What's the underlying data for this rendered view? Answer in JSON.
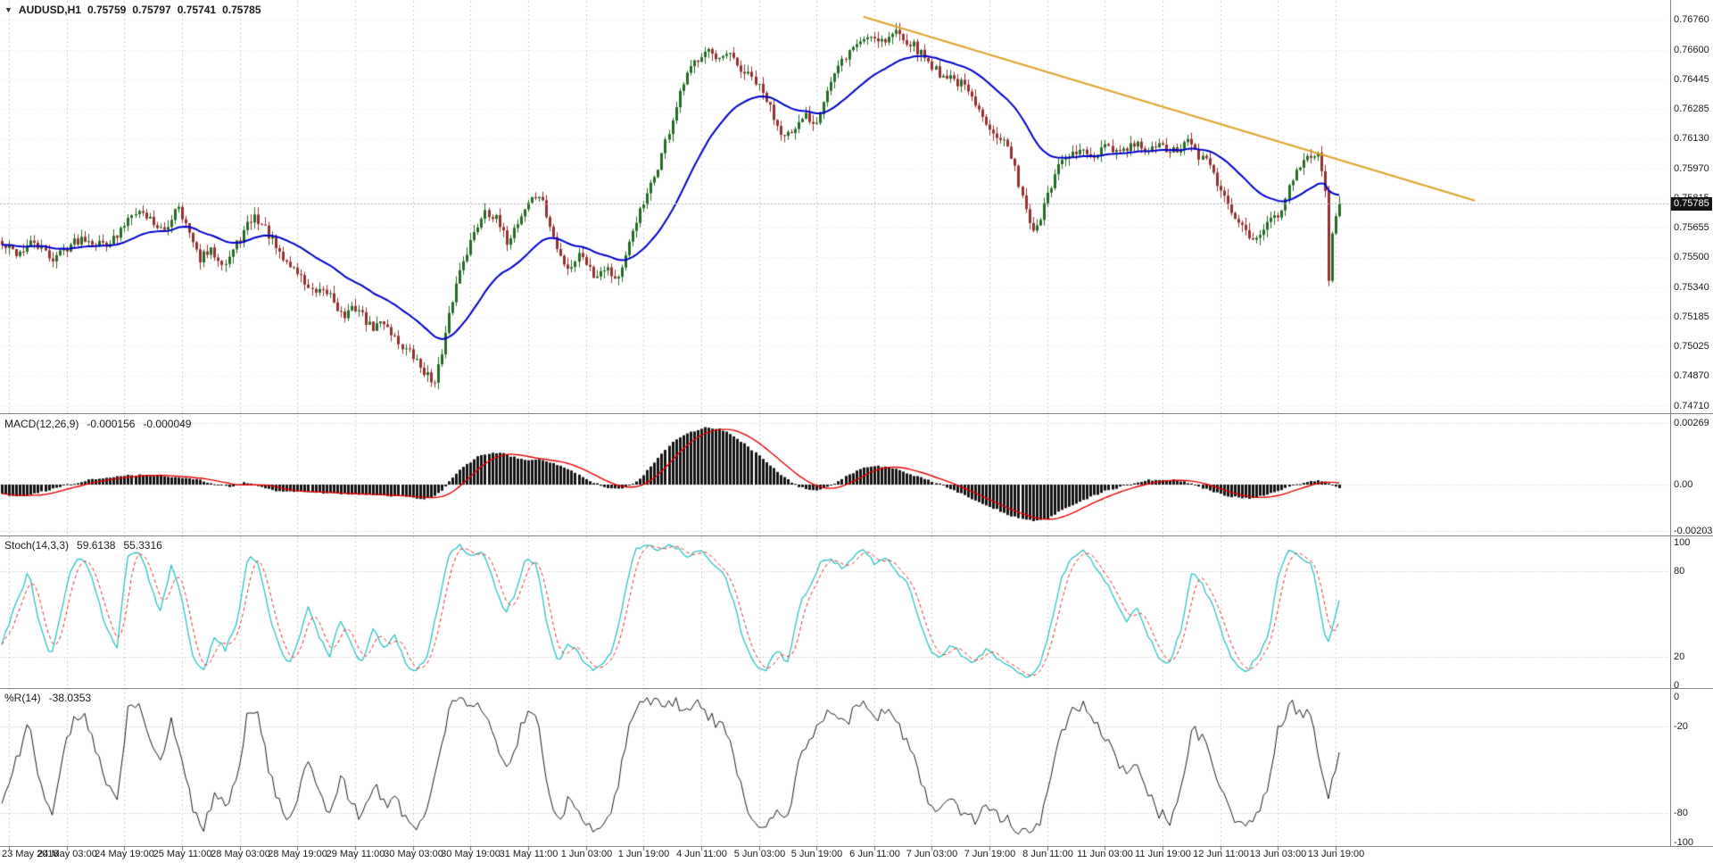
{
  "header": {
    "symbol": "AUDUSD,H1",
    "open": "0.75759",
    "high": "0.75797",
    "low": "0.75741",
    "close": "0.75785",
    "dropdown_icon": "▼"
  },
  "main_panel": {
    "price_labels": [
      "0.76760",
      "0.76600",
      "0.76445",
      "0.76285",
      "0.76130",
      "0.75970",
      "0.75815",
      "0.75655",
      "0.75500",
      "0.75340",
      "0.75185",
      "0.75025",
      "0.74870",
      "0.74710"
    ],
    "current_price": "0.75785",
    "up_color": "#256b25",
    "down_color": "#953131",
    "ma_color": "#0000cc",
    "trendline_color": "#dfa32b",
    "badge_bg": "#151515"
  },
  "macd_panel": {
    "label": "MACD(12,26,9)",
    "value1": "-0.000156",
    "value2": "-0.000049",
    "axis_labels": [
      "0.00269",
      "0.00",
      "-0.00203"
    ],
    "histogram_color": "#141414",
    "signal_color": "#e60000"
  },
  "stoch_panel": {
    "label": "Stoch(14,3,3)",
    "value1": "59.6138",
    "value2": "55.3316",
    "axis_labels": [
      "100",
      "80",
      "20",
      "0"
    ],
    "levels": [
      80,
      20
    ],
    "k_color": "#2ec4c4",
    "d_color": "#e03030"
  },
  "wpr_panel": {
    "label": "%R(14)",
    "value1": "-38.0353",
    "axis_labels": [
      "0",
      "-20",
      "-80",
      "-100"
    ],
    "levels": [
      -20,
      -80
    ],
    "line_color": "#1a1a1a"
  },
  "time_axis": {
    "labels": [
      "23 May 2018",
      "24 May 03:00",
      "24 May 19:00",
      "25 May 11:00",
      "28 May 03:00",
      "28 May 19:00",
      "29 May 11:00",
      "30 May 03:00",
      "30 May 19:00",
      "31 May 11:00",
      "1 Jun 03:00",
      "1 Jun 19:00",
      "4 Jun 11:00",
      "5 Jun 03:00",
      "5 Jun 19:00",
      "6 Jun 11:00",
      "7 Jun 03:00",
      "7 Jun 19:00",
      "8 Jun 11:00",
      "11 Jun 03:00",
      "11 Jun 19:00",
      "12 Jun 11:00",
      "13 Jun 03:00",
      "13 Jun 19:00"
    ]
  },
  "chart_data": {
    "type": "candlestick",
    "title": "AUDUSD,H1",
    "symbol": "AUDUSD",
    "timeframe": "H1",
    "bars": 372,
    "grid_every_bars": 16,
    "first_grid_bar": 2,
    "price_range": {
      "top_label_price": 0.7676,
      "bottom_label_price": 0.7471
    },
    "close_path": [
      [
        0,
        0.7556
      ],
      [
        0.012,
        0.7552
      ],
      [
        0.024,
        0.7558
      ],
      [
        0.037,
        0.7549
      ],
      [
        0.049,
        0.7556
      ],
      [
        0.061,
        0.7561
      ],
      [
        0.073,
        0.7557
      ],
      [
        0.086,
        0.756
      ],
      [
        0.098,
        0.7576
      ],
      [
        0.11,
        0.7571
      ],
      [
        0.122,
        0.7562
      ],
      [
        0.131,
        0.758
      ],
      [
        0.137,
        0.7568
      ],
      [
        0.147,
        0.7549
      ],
      [
        0.157,
        0.7553
      ],
      [
        0.167,
        0.7547
      ],
      [
        0.178,
        0.756
      ],
      [
        0.188,
        0.7572
      ],
      [
        0.198,
        0.7564
      ],
      [
        0.208,
        0.755
      ],
      [
        0.22,
        0.7543
      ],
      [
        0.233,
        0.753
      ],
      [
        0.245,
        0.7531
      ],
      [
        0.255,
        0.7518
      ],
      [
        0.265,
        0.7524
      ],
      [
        0.276,
        0.7512
      ],
      [
        0.286,
        0.7516
      ],
      [
        0.296,
        0.7505
      ],
      [
        0.306,
        0.7498
      ],
      [
        0.317,
        0.7488
      ],
      [
        0.322,
        0.7483
      ],
      [
        0.329,
        0.7498
      ],
      [
        0.336,
        0.7525
      ],
      [
        0.344,
        0.7548
      ],
      [
        0.353,
        0.7562
      ],
      [
        0.361,
        0.7576
      ],
      [
        0.369,
        0.757
      ],
      [
        0.377,
        0.7558
      ],
      [
        0.385,
        0.7568
      ],
      [
        0.394,
        0.758
      ],
      [
        0.402,
        0.7583
      ],
      [
        0.408,
        0.757
      ],
      [
        0.416,
        0.7552
      ],
      [
        0.424,
        0.7544
      ],
      [
        0.433,
        0.7553
      ],
      [
        0.442,
        0.754
      ],
      [
        0.451,
        0.7546
      ],
      [
        0.459,
        0.7538
      ],
      [
        0.465,
        0.7545
      ],
      [
        0.473,
        0.7568
      ],
      [
        0.482,
        0.7581
      ],
      [
        0.49,
        0.7597
      ],
      [
        0.5,
        0.762
      ],
      [
        0.51,
        0.7643
      ],
      [
        0.519,
        0.7655
      ],
      [
        0.527,
        0.7662
      ],
      [
        0.535,
        0.7652
      ],
      [
        0.543,
        0.7658
      ],
      [
        0.551,
        0.765
      ],
      [
        0.562,
        0.7644
      ],
      [
        0.571,
        0.7634
      ],
      [
        0.581,
        0.7618
      ],
      [
        0.592,
        0.7614
      ],
      [
        0.6,
        0.7626
      ],
      [
        0.608,
        0.7621
      ],
      [
        0.618,
        0.764
      ],
      [
        0.629,
        0.7655
      ],
      [
        0.638,
        0.7663
      ],
      [
        0.649,
        0.7668
      ],
      [
        0.66,
        0.7665
      ],
      [
        0.669,
        0.767
      ],
      [
        0.679,
        0.7664
      ],
      [
        0.69,
        0.7656
      ],
      [
        0.7,
        0.7648
      ],
      [
        0.71,
        0.7645
      ],
      [
        0.72,
        0.764
      ],
      [
        0.731,
        0.7626
      ],
      [
        0.741,
        0.7618
      ],
      [
        0.751,
        0.761
      ],
      [
        0.761,
        0.7588
      ],
      [
        0.771,
        0.7562
      ],
      [
        0.78,
        0.7578
      ],
      [
        0.788,
        0.7596
      ],
      [
        0.796,
        0.7602
      ],
      [
        0.806,
        0.7607
      ],
      [
        0.816,
        0.7602
      ],
      [
        0.826,
        0.7608
      ],
      [
        0.837,
        0.7605
      ],
      [
        0.847,
        0.761
      ],
      [
        0.857,
        0.7606
      ],
      [
        0.867,
        0.7609
      ],
      [
        0.878,
        0.7605
      ],
      [
        0.886,
        0.7612
      ],
      [
        0.894,
        0.7604
      ],
      [
        0.904,
        0.7598
      ],
      [
        0.914,
        0.758
      ],
      [
        0.924,
        0.7568
      ],
      [
        0.935,
        0.7561
      ],
      [
        0.945,
        0.7566
      ],
      [
        0.955,
        0.7574
      ],
      [
        0.965,
        0.7592
      ],
      [
        0.975,
        0.7601
      ],
      [
        0.983,
        0.7607
      ],
      [
        0.989,
        0.759
      ],
      [
        0.9915,
        0.7535
      ],
      [
        0.995,
        0.7566
      ],
      [
        1,
        0.75785
      ]
    ],
    "ma": {
      "type": "ema",
      "period": 30,
      "color": "#0000cc"
    },
    "trendline": {
      "x1_frac": 0.504,
      "price1": 0.76775,
      "x2_frac": 0.861,
      "price2": 0.758
    },
    "macd": {
      "params": "12,26,9",
      "last": -0.000156,
      "signal_last": -4.9e-05,
      "axis_range": [
        -0.00203,
        0.00269
      ],
      "signal_sma": 10,
      "path": [
        [
          0,
          -0.0004
        ],
        [
          0.01,
          -0.00055
        ],
        [
          0.025,
          -0.0004
        ],
        [
          0.045,
          -5e-05
        ],
        [
          0.065,
          0.0002
        ],
        [
          0.085,
          0.00035
        ],
        [
          0.1,
          0.00042
        ],
        [
          0.115,
          0.0004
        ],
        [
          0.13,
          0.00032
        ],
        [
          0.145,
          0.00025
        ],
        [
          0.158,
          5e-05
        ],
        [
          0.17,
          -0.00012
        ],
        [
          0.182,
          0.0001
        ],
        [
          0.192,
          -8e-05
        ],
        [
          0.205,
          -0.00028
        ],
        [
          0.225,
          -0.0003
        ],
        [
          0.245,
          -0.00038
        ],
        [
          0.265,
          -0.00042
        ],
        [
          0.285,
          -0.00048
        ],
        [
          0.302,
          -0.00055
        ],
        [
          0.315,
          -0.00062
        ],
        [
          0.322,
          -0.00055
        ],
        [
          0.33,
          -0.0002
        ],
        [
          0.338,
          0.0004
        ],
        [
          0.348,
          0.0009
        ],
        [
          0.358,
          0.0013
        ],
        [
          0.366,
          0.0014
        ],
        [
          0.375,
          0.00135
        ],
        [
          0.385,
          0.00115
        ],
        [
          0.395,
          0.00105
        ],
        [
          0.403,
          0.0011
        ],
        [
          0.412,
          0.00095
        ],
        [
          0.422,
          0.0007
        ],
        [
          0.432,
          0.0004
        ],
        [
          0.442,
          0.0001
        ],
        [
          0.452,
          -0.00012
        ],
        [
          0.46,
          -0.00018
        ],
        [
          0.468,
          -0.0001
        ],
        [
          0.476,
          0.0002
        ],
        [
          0.484,
          0.0007
        ],
        [
          0.492,
          0.0013
        ],
        [
          0.5,
          0.0018
        ],
        [
          0.51,
          0.0022
        ],
        [
          0.52,
          0.0024
        ],
        [
          0.527,
          0.0025
        ],
        [
          0.535,
          0.00245
        ],
        [
          0.545,
          0.0022
        ],
        [
          0.555,
          0.0018
        ],
        [
          0.565,
          0.0013
        ],
        [
          0.575,
          0.0008
        ],
        [
          0.583,
          0.0004
        ],
        [
          0.59,
          0.0001
        ],
        [
          0.596,
          -0.0001
        ],
        [
          0.603,
          -0.00022
        ],
        [
          0.61,
          -0.00025
        ],
        [
          0.618,
          -0.0001
        ],
        [
          0.626,
          0.0002
        ],
        [
          0.635,
          0.0005
        ],
        [
          0.645,
          0.00075
        ],
        [
          0.655,
          0.0008
        ],
        [
          0.663,
          0.00075
        ],
        [
          0.672,
          0.0006
        ],
        [
          0.682,
          0.0004
        ],
        [
          0.692,
          0.0002
        ],
        [
          0.7,
          5e-05
        ],
        [
          0.71,
          -0.0002
        ],
        [
          0.72,
          -0.0005
        ],
        [
          0.732,
          -0.0008
        ],
        [
          0.744,
          -0.0011
        ],
        [
          0.756,
          -0.0014
        ],
        [
          0.766,
          -0.00155
        ],
        [
          0.772,
          -0.0016
        ],
        [
          0.78,
          -0.0015
        ],
        [
          0.79,
          -0.0012
        ],
        [
          0.8,
          -0.0009
        ],
        [
          0.812,
          -0.0006
        ],
        [
          0.824,
          -0.0003
        ],
        [
          0.836,
          -0.0001
        ],
        [
          0.845,
          5e-05
        ],
        [
          0.855,
          0.00018
        ],
        [
          0.865,
          0.00022
        ],
        [
          0.875,
          0.0002
        ],
        [
          0.885,
          0.00012
        ],
        [
          0.895,
          -0.0001
        ],
        [
          0.905,
          -0.0003
        ],
        [
          0.915,
          -0.00048
        ],
        [
          0.925,
          -0.00058
        ],
        [
          0.933,
          -0.0006
        ],
        [
          0.942,
          -0.0005
        ],
        [
          0.952,
          -0.00032
        ],
        [
          0.962,
          -0.0001
        ],
        [
          0.972,
          8e-05
        ],
        [
          0.982,
          0.00018
        ],
        [
          0.99,
          0.0001
        ],
        [
          1,
          -0.000156
        ]
      ]
    },
    "stoch": {
      "params": "14,3,3",
      "k_last": 59.6138,
      "d_last": 55.3316,
      "d_sma": 4,
      "k_path": [
        [
          0,
          30
        ],
        [
          0.012,
          60
        ],
        [
          0.02,
          80
        ],
        [
          0.029,
          40
        ],
        [
          0.037,
          20
        ],
        [
          0.045,
          55
        ],
        [
          0.053,
          85
        ],
        [
          0.061,
          90
        ],
        [
          0.069,
          70
        ],
        [
          0.078,
          40
        ],
        [
          0.086,
          25
        ],
        [
          0.094,
          90
        ],
        [
          0.102,
          95
        ],
        [
          0.11,
          75
        ],
        [
          0.118,
          50
        ],
        [
          0.127,
          85
        ],
        [
          0.135,
          60
        ],
        [
          0.143,
          20
        ],
        [
          0.151,
          10
        ],
        [
          0.159,
          35
        ],
        [
          0.167,
          25
        ],
        [
          0.176,
          45
        ],
        [
          0.184,
          90
        ],
        [
          0.192,
          85
        ],
        [
          0.2,
          50
        ],
        [
          0.208,
          25
        ],
        [
          0.216,
          15
        ],
        [
          0.229,
          55
        ],
        [
          0.237,
          35
        ],
        [
          0.245,
          20
        ],
        [
          0.253,
          45
        ],
        [
          0.261,
          30
        ],
        [
          0.269,
          15
        ],
        [
          0.278,
          40
        ],
        [
          0.286,
          25
        ],
        [
          0.294,
          35
        ],
        [
          0.302,
          15
        ],
        [
          0.31,
          10
        ],
        [
          0.318,
          20
        ],
        [
          0.327,
          60
        ],
        [
          0.335,
          95
        ],
        [
          0.343,
          98
        ],
        [
          0.351,
          90
        ],
        [
          0.359,
          95
        ],
        [
          0.367,
          75
        ],
        [
          0.376,
          50
        ],
        [
          0.384,
          65
        ],
        [
          0.392,
          90
        ],
        [
          0.4,
          85
        ],
        [
          0.408,
          40
        ],
        [
          0.416,
          15
        ],
        [
          0.424,
          30
        ],
        [
          0.433,
          20
        ],
        [
          0.441,
          10
        ],
        [
          0.449,
          15
        ],
        [
          0.457,
          25
        ],
        [
          0.465,
          60
        ],
        [
          0.473,
          95
        ],
        [
          0.482,
          98
        ],
        [
          0.49,
          95
        ],
        [
          0.498,
          98
        ],
        [
          0.506,
          95
        ],
        [
          0.514,
          90
        ],
        [
          0.522,
          95
        ],
        [
          0.531,
          85
        ],
        [
          0.539,
          80
        ],
        [
          0.547,
          60
        ],
        [
          0.555,
          30
        ],
        [
          0.563,
          15
        ],
        [
          0.571,
          10
        ],
        [
          0.58,
          25
        ],
        [
          0.588,
          15
        ],
        [
          0.596,
          55
        ],
        [
          0.604,
          70
        ],
        [
          0.612,
          85
        ],
        [
          0.62,
          90
        ],
        [
          0.629,
          80
        ],
        [
          0.637,
          90
        ],
        [
          0.645,
          95
        ],
        [
          0.653,
          85
        ],
        [
          0.661,
          90
        ],
        [
          0.669,
          80
        ],
        [
          0.678,
          70
        ],
        [
          0.686,
          45
        ],
        [
          0.694,
          25
        ],
        [
          0.702,
          20
        ],
        [
          0.71,
          30
        ],
        [
          0.718,
          20
        ],
        [
          0.727,
          15
        ],
        [
          0.735,
          25
        ],
        [
          0.743,
          20
        ],
        [
          0.751,
          15
        ],
        [
          0.759,
          10
        ],
        [
          0.767,
          5
        ],
        [
          0.776,
          15
        ],
        [
          0.784,
          40
        ],
        [
          0.792,
          75
        ],
        [
          0.8,
          90
        ],
        [
          0.808,
          95
        ],
        [
          0.816,
          85
        ],
        [
          0.824,
          75
        ],
        [
          0.833,
          60
        ],
        [
          0.841,
          45
        ],
        [
          0.849,
          55
        ],
        [
          0.857,
          35
        ],
        [
          0.865,
          20
        ],
        [
          0.873,
          15
        ],
        [
          0.882,
          40
        ],
        [
          0.89,
          80
        ],
        [
          0.898,
          70
        ],
        [
          0.906,
          55
        ],
        [
          0.914,
          30
        ],
        [
          0.922,
          15
        ],
        [
          0.931,
          10
        ],
        [
          0.939,
          20
        ],
        [
          0.947,
          35
        ],
        [
          0.955,
          80
        ],
        [
          0.963,
          95
        ],
        [
          0.971,
          90
        ],
        [
          0.98,
          85
        ],
        [
          0.988,
          40
        ],
        [
          0.992,
          30
        ],
        [
          1,
          59.6
        ]
      ]
    },
    "wpr": {
      "params": "14",
      "last": -38.0353,
      "derived": "stoch_k_minus_100_with_noise"
    }
  }
}
